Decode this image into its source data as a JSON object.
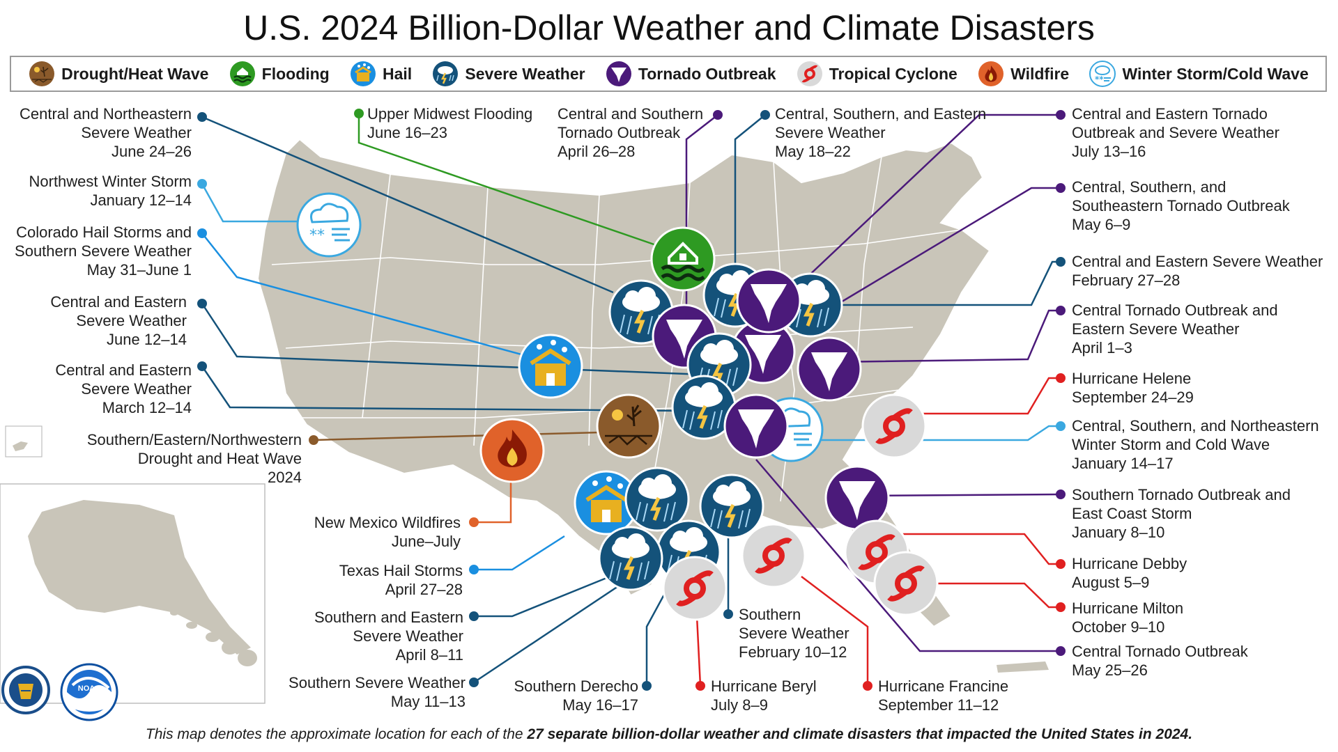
{
  "title": "U.S. 2024 Billion-Dollar Weather and Climate Disasters",
  "legend": [
    {
      "label": "Drought/Heat Wave",
      "icon": "drought-icon"
    },
    {
      "label": "Flooding",
      "icon": "flooding-icon"
    },
    {
      "label": "Hail",
      "icon": "hail-icon"
    },
    {
      "label": "Severe Weather",
      "icon": "severe-weather-icon"
    },
    {
      "label": "Tornado Outbreak",
      "icon": "tornado-icon"
    },
    {
      "label": "Tropical Cyclone",
      "icon": "tropical-cyclone-icon"
    },
    {
      "label": "Wildfire",
      "icon": "wildfire-icon"
    },
    {
      "label": "Winter Storm/Cold Wave",
      "icon": "winter-storm-icon"
    }
  ],
  "colors": {
    "drought": "#8a5a2b",
    "flooding": "#2e9a22",
    "hail": "#1a8fe0",
    "severe": "#14527a",
    "tornado": "#4b1a7a",
    "tropical": "#e02020",
    "wildfire": "#e0622a",
    "winter": "#3aa8e0",
    "land": "#c9c5b9"
  },
  "events": [
    {
      "name": "Central and Northeastern",
      "sub": "Severe Weather",
      "date": "June 24–26",
      "type": "severe"
    },
    {
      "name": "Upper Midwest Flooding",
      "sub": "",
      "date": "June 16–23",
      "type": "flooding"
    },
    {
      "name": "Central and Southern",
      "sub": "Tornado Outbreak",
      "date": "April 26–28",
      "type": "tornado"
    },
    {
      "name": "Central, Southern, and Eastern",
      "sub": "Severe Weather",
      "date": "May 18–22",
      "type": "severe"
    },
    {
      "name": "Central and Eastern Tornado",
      "sub": "Outbreak and Severe Weather",
      "date": "July 13–16",
      "type": "tornado"
    },
    {
      "name": "Northwest Winter Storm",
      "sub": "",
      "date": "January 12–14",
      "type": "winter"
    },
    {
      "name": "Central, Southern, and",
      "sub": "Southeastern Tornado Outbreak",
      "date": "May 6–9",
      "type": "tornado"
    },
    {
      "name": "Colorado Hail Storms and",
      "sub": "Southern Severe Weather",
      "date": "May 31–June 1",
      "type": "hail"
    },
    {
      "name": "Central and Eastern Severe Weather",
      "sub": "",
      "date": "February 27–28",
      "type": "severe"
    },
    {
      "name": "Central and Eastern",
      "sub": "Severe Weather",
      "date": "June 12–14",
      "type": "severe"
    },
    {
      "name": "Central Tornado Outbreak and",
      "sub": "Eastern Severe Weather",
      "date": "April 1–3",
      "type": "tornado"
    },
    {
      "name": "Central and Eastern",
      "sub": "Severe Weather",
      "date": "March 12–14",
      "type": "severe"
    },
    {
      "name": "Hurricane Helene",
      "sub": "",
      "date": "September 24–29",
      "type": "tropical"
    },
    {
      "name": "Southern/Eastern/Northwestern",
      "sub": "Drought and Heat Wave",
      "date": "2024",
      "type": "drought"
    },
    {
      "name": "Central, Southern, and Northeastern",
      "sub": "Winter Storm and Cold Wave",
      "date": "January 14–17",
      "type": "winter"
    },
    {
      "name": "Southern Tornado Outbreak and",
      "sub": "East Coast Storm",
      "date": "January 8–10",
      "type": "tornado"
    },
    {
      "name": "New Mexico Wildfires",
      "sub": "",
      "date": "June–July",
      "type": "wildfire"
    },
    {
      "name": "Hurricane Debby",
      "sub": "",
      "date": "August 5–9",
      "type": "tropical"
    },
    {
      "name": "Texas Hail Storms",
      "sub": "",
      "date": "April 27–28",
      "type": "hail"
    },
    {
      "name": "Hurricane Milton",
      "sub": "",
      "date": "October 9–10",
      "type": "tropical"
    },
    {
      "name": "Southern and Eastern",
      "sub": "Severe Weather",
      "date": "April 8–11",
      "type": "severe"
    },
    {
      "name": "Southern",
      "sub": "Severe Weather",
      "date": "February 10–12",
      "type": "severe"
    },
    {
      "name": "Central Tornado Outbreak",
      "sub": "",
      "date": "May 25–26",
      "type": "tornado"
    },
    {
      "name": "Southern Severe Weather",
      "sub": "",
      "date": "May 11–13",
      "type": "severe"
    },
    {
      "name": "Southern Derecho",
      "sub": "",
      "date": "May 16–17",
      "type": "severe"
    },
    {
      "name": "Hurricane Beryl",
      "sub": "",
      "date": "July 8–9",
      "type": "tropical"
    },
    {
      "name": "Hurricane Francine",
      "sub": "",
      "date": "September 11–12",
      "type": "tropical"
    }
  ],
  "footnote": {
    "prefix": "This map denotes the approximate location for each of the ",
    "bold": "27 separate billion-dollar weather and climate disasters that impacted the United States in 2024."
  },
  "logos": {
    "noaa": "NOAA"
  }
}
